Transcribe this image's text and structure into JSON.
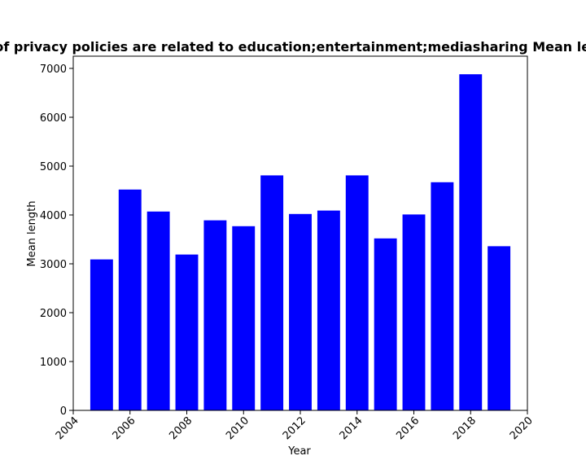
{
  "chart_data": {
    "type": "bar",
    "title": "Mean length of privacy policies are related to education;entertainment;mediasharing Mean length in privacy",
    "xlabel": "Year",
    "ylabel": "Mean length",
    "x": [
      2005,
      2006,
      2007,
      2008,
      2009,
      2010,
      2011,
      2012,
      2013,
      2014,
      2015,
      2016,
      2017,
      2018,
      2019
    ],
    "values": [
      3090,
      4520,
      4070,
      3190,
      3890,
      3770,
      4810,
      4020,
      4090,
      4810,
      3520,
      4010,
      4670,
      6880,
      3360
    ],
    "xlim": [
      2004,
      2020
    ],
    "ylim": [
      0,
      7250
    ],
    "xticks": [
      "2004",
      "2006",
      "2008",
      "2010",
      "2012",
      "2014",
      "2016",
      "2018",
      "2020"
    ],
    "yticks": [
      "0",
      "1000",
      "2000",
      "3000",
      "4000",
      "5000",
      "6000",
      "7000"
    ],
    "bar_color": "#0000ff",
    "grid": false,
    "legend": "none"
  }
}
